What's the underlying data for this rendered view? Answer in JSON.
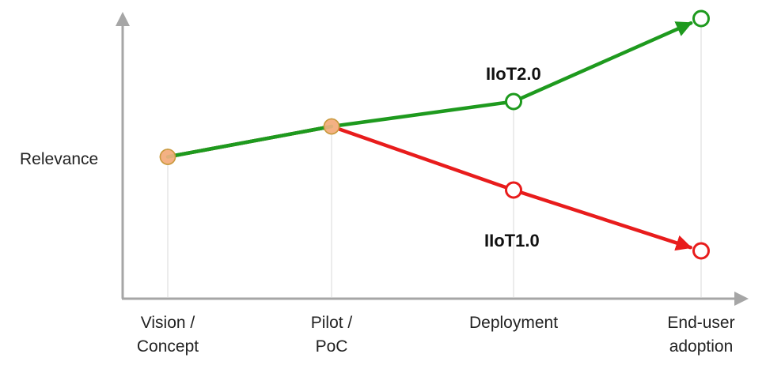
{
  "chart_data": {
    "type": "line",
    "ylabel": "Relevance",
    "categories": [
      [
        "Vision /",
        "Concept"
      ],
      [
        "Pilot /",
        "PoC"
      ],
      [
        "Deployment"
      ],
      [
        "End-user",
        "adoption"
      ]
    ],
    "ylim": [
      0,
      10
    ],
    "grid": false,
    "series": [
      {
        "name": "IIoT1.0",
        "color": "#e81c1c",
        "values": [
          4.9,
          6.0,
          3.7,
          1.5
        ],
        "markers": [
          "filled-orange",
          "filled-orange",
          "hollow",
          "hollow"
        ]
      },
      {
        "name": "IIoT2.0",
        "color": "#1e9a1e",
        "values": [
          4.9,
          6.0,
          6.9,
          9.9
        ],
        "markers": [
          "filled-orange",
          "filled-orange",
          "hollow",
          "hollow"
        ]
      }
    ],
    "colors": {
      "axis": "#a6a6a6",
      "shared_marker_fill": "#f4b183",
      "shared_marker_stroke": "#c99a3e"
    }
  }
}
